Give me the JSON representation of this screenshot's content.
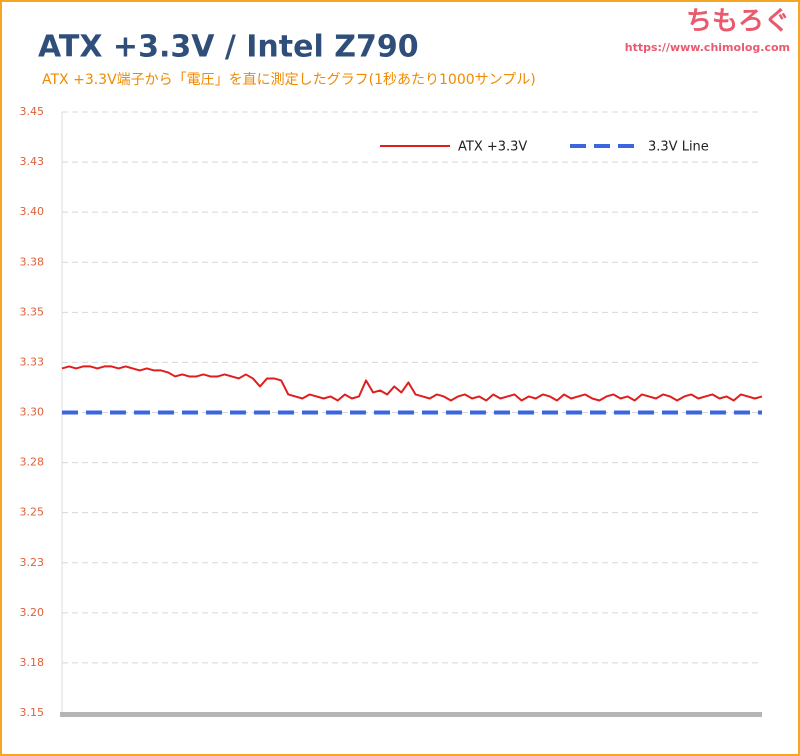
{
  "chart_data": {
    "type": "line",
    "title": "ATX +3.3V / Intel Z790",
    "subtitle": "ATX +3.3V端子から「電圧」を直に測定したグラフ(1秒あたり1000サンプル)",
    "logo": "ちもろぐ",
    "url": "https://www.chimolog.com",
    "ylim": [
      3.15,
      3.45
    ],
    "yticks": [
      3.15,
      {
        "value": 3.175,
        "label": "3.18"
      },
      {
        "value": 3.2,
        "label": "3.20"
      },
      {
        "value": 3.225,
        "label": "3.23"
      },
      3.25,
      {
        "value": 3.275,
        "label": "3.28"
      },
      {
        "value": 3.3,
        "label": "3.30"
      },
      {
        "value": 3.325,
        "label": "3.33"
      },
      3.35,
      {
        "value": 3.375,
        "label": "3.38"
      },
      {
        "value": 3.4,
        "label": "3.40"
      },
      {
        "value": 3.425,
        "label": "3.43"
      },
      3.45
    ],
    "grid": true,
    "series": [
      {
        "name": "ATX +3.3V",
        "color": "#e01e1e",
        "values": [
          3.322,
          3.323,
          3.322,
          3.323,
          3.323,
          3.322,
          3.323,
          3.323,
          3.322,
          3.323,
          3.322,
          3.321,
          3.322,
          3.321,
          3.321,
          3.32,
          3.318,
          3.319,
          3.318,
          3.318,
          3.319,
          3.318,
          3.318,
          3.319,
          3.318,
          3.317,
          3.319,
          3.317,
          3.313,
          3.317,
          3.317,
          3.316,
          3.309,
          3.308,
          3.307,
          3.309,
          3.308,
          3.307,
          3.308,
          3.306,
          3.309,
          3.307,
          3.308,
          3.316,
          3.31,
          3.311,
          3.309,
          3.313,
          3.31,
          3.315,
          3.309,
          3.308,
          3.307,
          3.309,
          3.308,
          3.306,
          3.308,
          3.309,
          3.307,
          3.308,
          3.306,
          3.309,
          3.307,
          3.308,
          3.309,
          3.306,
          3.308,
          3.307,
          3.309,
          3.308,
          3.306,
          3.309,
          3.307,
          3.308,
          3.309,
          3.307,
          3.306,
          3.308,
          3.309,
          3.307,
          3.308,
          3.306,
          3.309,
          3.308,
          3.307,
          3.309,
          3.308,
          3.306,
          3.308,
          3.309,
          3.307,
          3.308,
          3.309,
          3.307,
          3.308,
          3.306,
          3.309,
          3.308,
          3.307,
          3.308
        ]
      },
      {
        "name": "3.3V Line",
        "color": "#3a66e0",
        "dashed": true,
        "values": [
          3.3,
          3.3
        ]
      }
    ]
  }
}
